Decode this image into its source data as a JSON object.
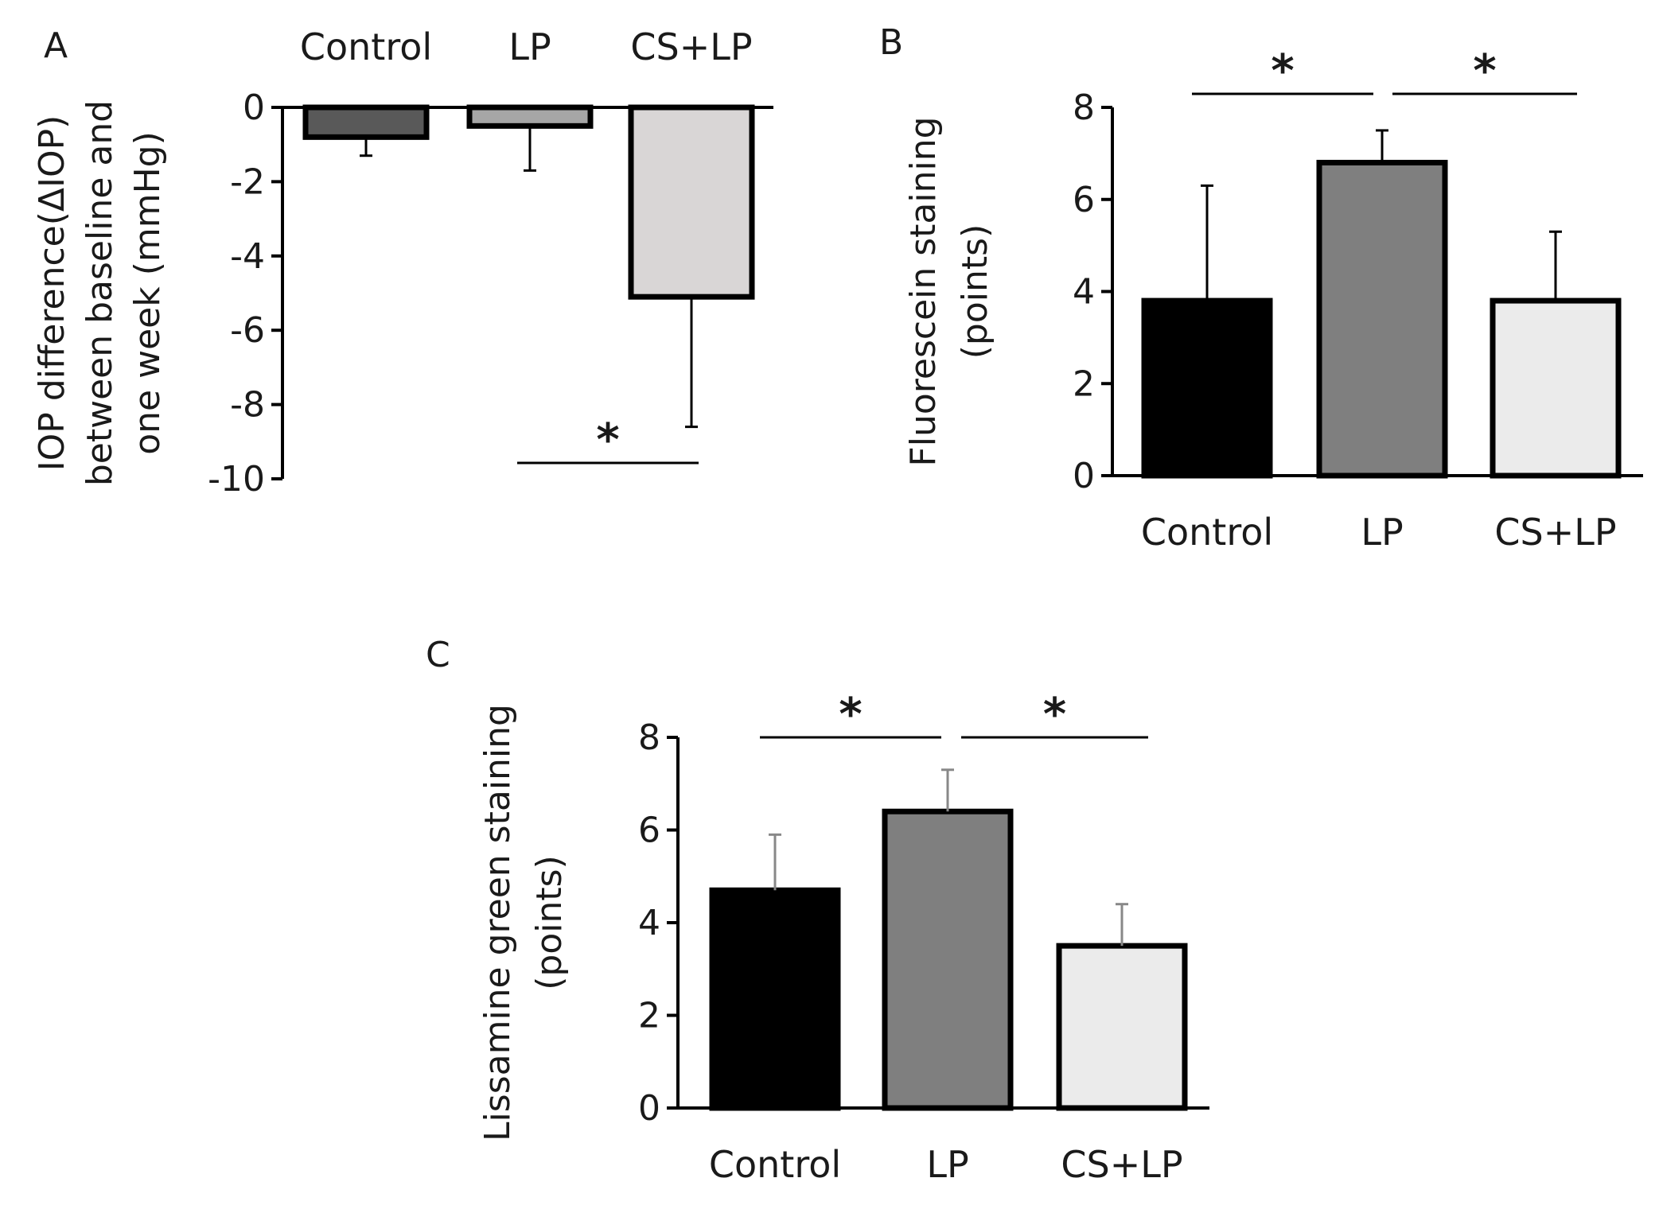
{
  "chart_data": [
    {
      "panel": "A",
      "type": "bar",
      "categories": [
        "Control",
        "LP",
        "CS+LP"
      ],
      "values": [
        -0.8,
        -0.5,
        -5.1
      ],
      "errors": [
        0.5,
        1.2,
        3.5
      ],
      "ylabel_lines": [
        "IOP difference(ΔIOP)",
        "between baseline and",
        "one week (mmHg)"
      ],
      "ylim": [
        -10,
        0
      ],
      "yticks": [
        "0",
        "-2",
        "-4",
        "-6",
        "-8",
        "-10"
      ],
      "category_axis_position": "top",
      "bar_colors": [
        "#595959",
        "#a6a6a6",
        "#d9d6d6"
      ],
      "significance": [
        {
          "from": "LP",
          "to": "CS+LP",
          "label": "*"
        }
      ]
    },
    {
      "panel": "B",
      "type": "bar",
      "categories": [
        "Control",
        "LP",
        "CS+LP"
      ],
      "values": [
        3.8,
        6.8,
        3.8
      ],
      "errors": [
        2.5,
        0.7,
        1.5
      ],
      "ylabel_lines": [
        "Fluorescein staining",
        "(points)"
      ],
      "ylim": [
        0,
        8
      ],
      "yticks": [
        "0",
        "2",
        "4",
        "6",
        "8"
      ],
      "category_axis_position": "bottom",
      "bar_colors": [
        "#000000",
        "#7f7f7f",
        "#ebebeb"
      ],
      "significance": [
        {
          "from": "Control",
          "to": "LP",
          "label": "*"
        },
        {
          "from": "LP",
          "to": "CS+LP",
          "label": "*"
        }
      ]
    },
    {
      "panel": "C",
      "type": "bar",
      "categories": [
        "Control",
        "LP",
        "CS+LP"
      ],
      "values": [
        4.7,
        6.4,
        3.5
      ],
      "errors": [
        1.2,
        0.9,
        0.9
      ],
      "ylabel_lines": [
        "Lissamine green staining",
        "(points)"
      ],
      "ylim": [
        0,
        8
      ],
      "yticks": [
        "0",
        "2",
        "4",
        "6",
        "8"
      ],
      "category_axis_position": "bottom",
      "bar_colors": [
        "#000000",
        "#7f7f7f",
        "#ebebeb"
      ],
      "significance": [
        {
          "from": "Control",
          "to": "LP",
          "label": "*"
        },
        {
          "from": "LP",
          "to": "CS+LP",
          "label": "*"
        }
      ]
    }
  ]
}
